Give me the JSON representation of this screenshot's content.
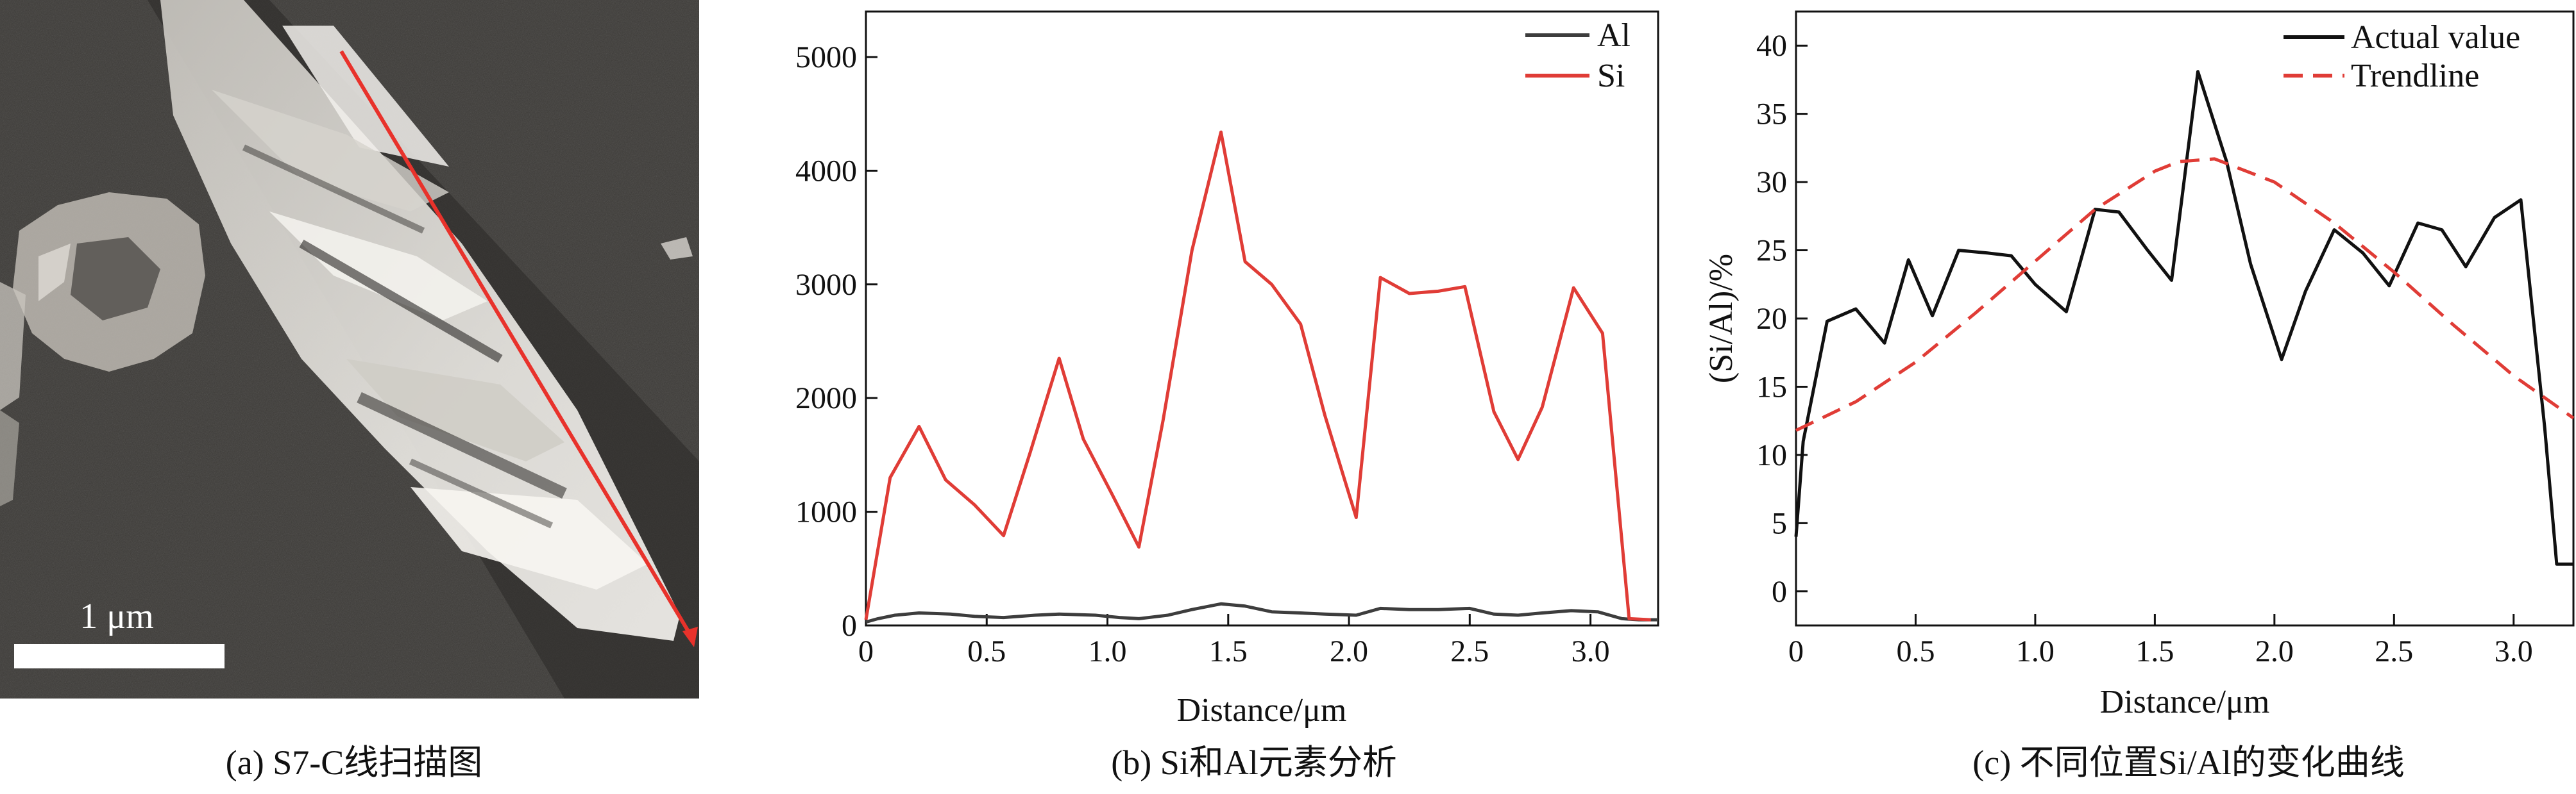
{
  "panel_a": {
    "scale_label": "1 μm",
    "caption": "(a) S7-C线扫描图",
    "colors": {
      "scan_line": "#e8322b",
      "scale_bar": "#ffffff",
      "background": "#3c3a37"
    }
  },
  "chart_data": [
    {
      "type": "line",
      "caption": "(b) Si和Al元素分析",
      "xlabel": "Distance/μm",
      "ylabel": "",
      "xlim": [
        0,
        3.28
      ],
      "ylim": [
        0,
        5400
      ],
      "xticks": [
        0,
        0.5,
        1.0,
        1.5,
        2.0,
        2.5,
        3.0
      ],
      "xtick_labels": [
        "0",
        "0.5",
        "1.0",
        "1.5",
        "2.0",
        "2.5",
        "3.0"
      ],
      "yticks": [
        0,
        1000,
        2000,
        3000,
        4000,
        5000
      ],
      "ytick_labels": [
        "0",
        "1000",
        "2000",
        "3000",
        "4000",
        "5000"
      ],
      "grid": false,
      "legend_position": "top-right",
      "series": [
        {
          "name": "Al",
          "color": "#3d3d3d",
          "x": [
            0,
            0.05,
            0.12,
            0.22,
            0.35,
            0.45,
            0.57,
            0.7,
            0.8,
            0.95,
            1.05,
            1.13,
            1.25,
            1.35,
            1.47,
            1.57,
            1.68,
            1.8,
            1.9,
            2.03,
            2.13,
            2.25,
            2.37,
            2.5,
            2.6,
            2.7,
            2.8,
            2.92,
            3.03,
            3.13,
            3.2,
            3.28
          ],
          "y": [
            30,
            60,
            90,
            110,
            100,
            80,
            70,
            90,
            100,
            90,
            70,
            60,
            90,
            140,
            190,
            170,
            120,
            110,
            100,
            90,
            150,
            140,
            140,
            150,
            100,
            90,
            110,
            130,
            120,
            60,
            50,
            50
          ]
        },
        {
          "name": "Si",
          "color": "#e03c36",
          "x": [
            0,
            0.1,
            0.22,
            0.33,
            0.45,
            0.57,
            0.68,
            0.8,
            0.9,
            1.02,
            1.13,
            1.23,
            1.35,
            1.47,
            1.57,
            1.68,
            1.8,
            1.9,
            2.03,
            2.13,
            2.25,
            2.37,
            2.48,
            2.6,
            2.7,
            2.8,
            2.93,
            3.05,
            3.16,
            3.25
          ],
          "y": [
            50,
            1300,
            1750,
            1280,
            1060,
            790,
            1520,
            2350,
            1640,
            1150,
            690,
            1800,
            3300,
            4340,
            3200,
            3000,
            2650,
            1850,
            950,
            3060,
            2920,
            2940,
            2980,
            1880,
            1460,
            1920,
            2970,
            2570,
            60,
            50
          ]
        }
      ]
    },
    {
      "type": "line",
      "caption": "(c) 不同位置Si/Al的变化曲线",
      "xlabel": "Distance/μm",
      "ylabel": "(Si/Al)/%",
      "xlim": [
        0,
        3.25
      ],
      "ylim": [
        -2.5,
        42.5
      ],
      "xticks": [
        0,
        0.5,
        1.0,
        1.5,
        2.0,
        2.5,
        3.0
      ],
      "xtick_labels": [
        "0",
        "0.5",
        "1.0",
        "1.5",
        "2.0",
        "2.5",
        "3.0"
      ],
      "yticks": [
        0,
        5,
        10,
        15,
        20,
        25,
        30,
        35,
        40
      ],
      "ytick_labels": [
        "0",
        "5",
        "10",
        "15",
        "20",
        "25",
        "30",
        "35",
        "40"
      ],
      "grid": false,
      "legend_position": "top-right",
      "series": [
        {
          "name": "Actual value",
          "color": "#111111",
          "style": "solid",
          "x": [
            0,
            0.03,
            0.13,
            0.25,
            0.37,
            0.47,
            0.57,
            0.68,
            0.8,
            0.9,
            1.0,
            1.13,
            1.25,
            1.35,
            1.47,
            1.57,
            1.68,
            1.8,
            1.9,
            2.03,
            2.13,
            2.25,
            2.37,
            2.48,
            2.6,
            2.7,
            2.8,
            2.92,
            3.03,
            3.13,
            3.18,
            3.25
          ],
          "y": [
            4,
            11,
            19.8,
            20.7,
            18.2,
            24.3,
            20.2,
            25.0,
            24.8,
            24.6,
            22.5,
            20.5,
            28.0,
            27.8,
            25.0,
            22.8,
            38.1,
            31.5,
            24.0,
            17.0,
            22.0,
            26.5,
            24.8,
            22.4,
            27.0,
            26.5,
            23.8,
            27.4,
            28.7,
            12.0,
            2.0,
            2.0
          ]
        },
        {
          "name": "Trendline",
          "color": "#e03c36",
          "style": "dashed",
          "x": [
            0,
            0.25,
            0.5,
            0.75,
            1.0,
            1.25,
            1.5,
            1.6,
            1.75,
            2.0,
            2.25,
            2.5,
            2.75,
            3.0,
            3.25
          ],
          "y": [
            11.8,
            13.9,
            16.8,
            20.4,
            24.2,
            28.0,
            30.8,
            31.5,
            31.7,
            30.0,
            27.0,
            23.4,
            19.5,
            15.8,
            12.7
          ]
        }
      ]
    }
  ]
}
